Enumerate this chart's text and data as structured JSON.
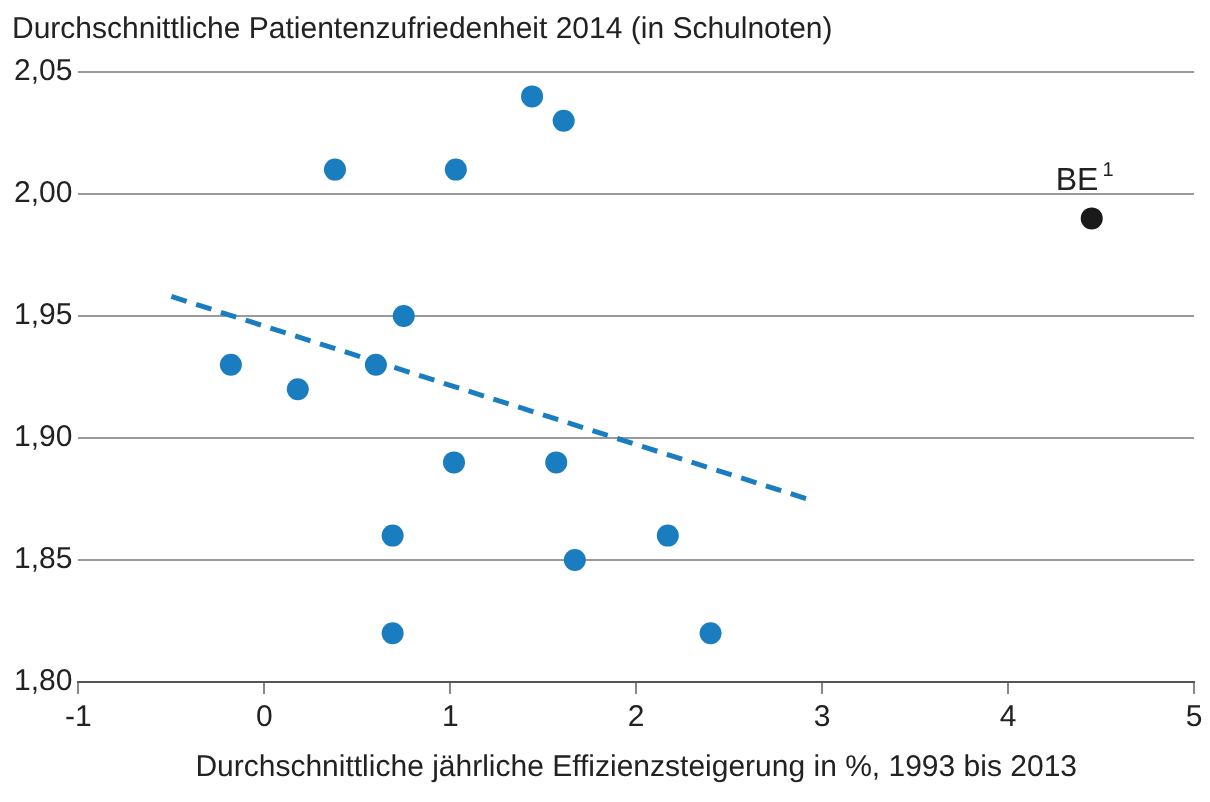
{
  "chart_data": {
    "type": "scatter",
    "ylabel": "Durchschnittliche Patientenzufriedenheit 2014 (in Schulnoten)",
    "xlabel": "Durchschnittliche jährliche Effizienzsteigerung in %, 1993 bis 2013",
    "xlim": [
      -1,
      5
    ],
    "xticks": [
      -1,
      0,
      1,
      2,
      3,
      4,
      5
    ],
    "ylim": [
      1.8,
      2.05
    ],
    "yticks": [
      {
        "value": 1.8,
        "label": "1,80"
      },
      {
        "value": 1.85,
        "label": "1,85"
      },
      {
        "value": 1.9,
        "label": "1,90"
      },
      {
        "value": 1.95,
        "label": "1,95"
      },
      {
        "value": 2.0,
        "label": "2,00"
      },
      {
        "value": 2.05,
        "label": "2,05"
      }
    ],
    "grid": "y",
    "marker": "circle",
    "legend": false,
    "series": [
      {
        "color": "#1a7dc0",
        "x": [
          0.38,
          1.03,
          1.44,
          1.61,
          0.75,
          -0.18,
          0.18,
          0.6,
          1.02,
          1.57,
          0.69,
          2.17,
          1.67,
          0.69,
          2.4
        ],
        "values": [
          2.01,
          2.01,
          2.04,
          2.03,
          1.95,
          1.93,
          1.92,
          1.93,
          1.89,
          1.89,
          1.86,
          1.86,
          1.85,
          1.82,
          1.82
        ]
      },
      {
        "name": "BE$^{1}$",
        "color": "#1a1a1a",
        "x": [
          4.45
        ],
        "values": [
          1.99
        ]
      },
      {
        "type": "line",
        "line_style": "dashed",
        "marker": "none",
        "color": "#1a7dc0",
        "x": [
          -0.5,
          2.92
        ],
        "values": [
          1.958,
          1.875
        ]
      }
    ]
  }
}
